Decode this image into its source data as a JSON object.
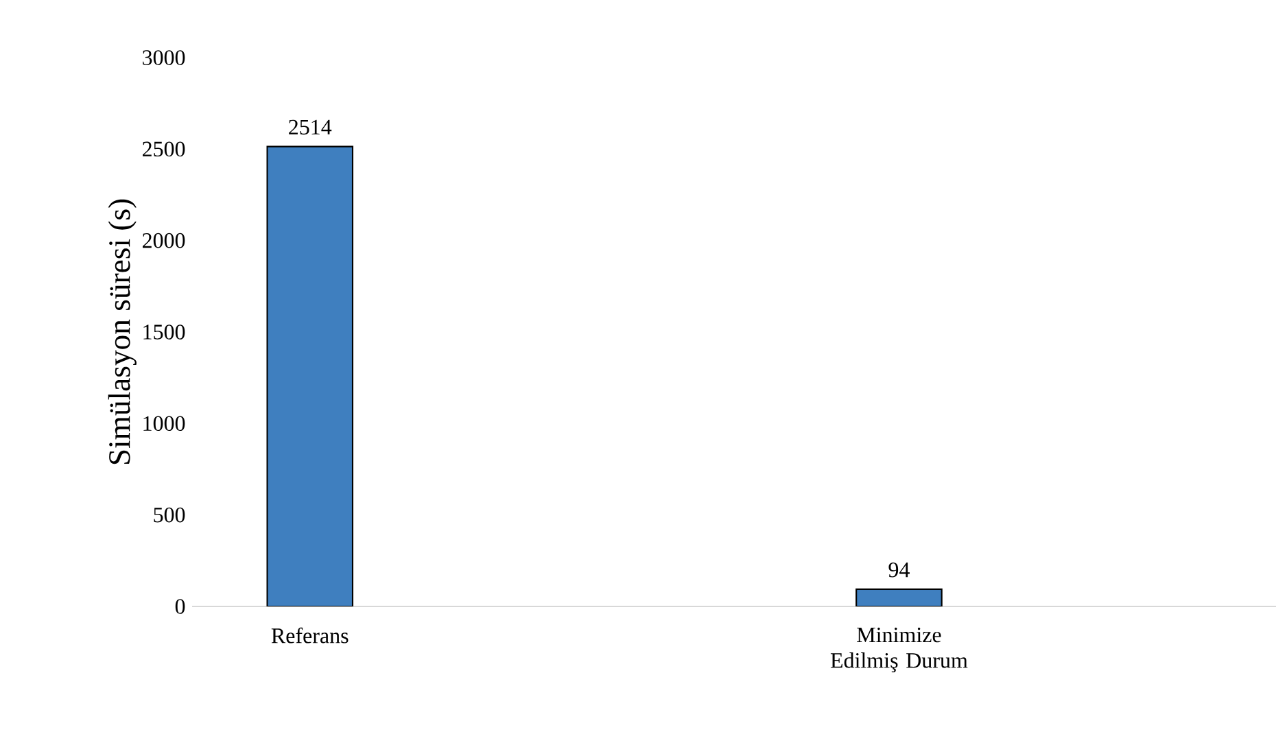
{
  "chart_data": {
    "type": "bar",
    "ylabel": "Simülasyon süresi (s)",
    "categories": [
      "Referans",
      "Minimize Edilmiş Durum"
    ],
    "values": [
      2514,
      94
    ],
    "color": "#3f7fbf",
    "ylim": [
      0,
      3000
    ],
    "yticks": [
      0,
      500,
      1000,
      1500,
      2000,
      2500,
      3000
    ],
    "data_labels": true
  }
}
